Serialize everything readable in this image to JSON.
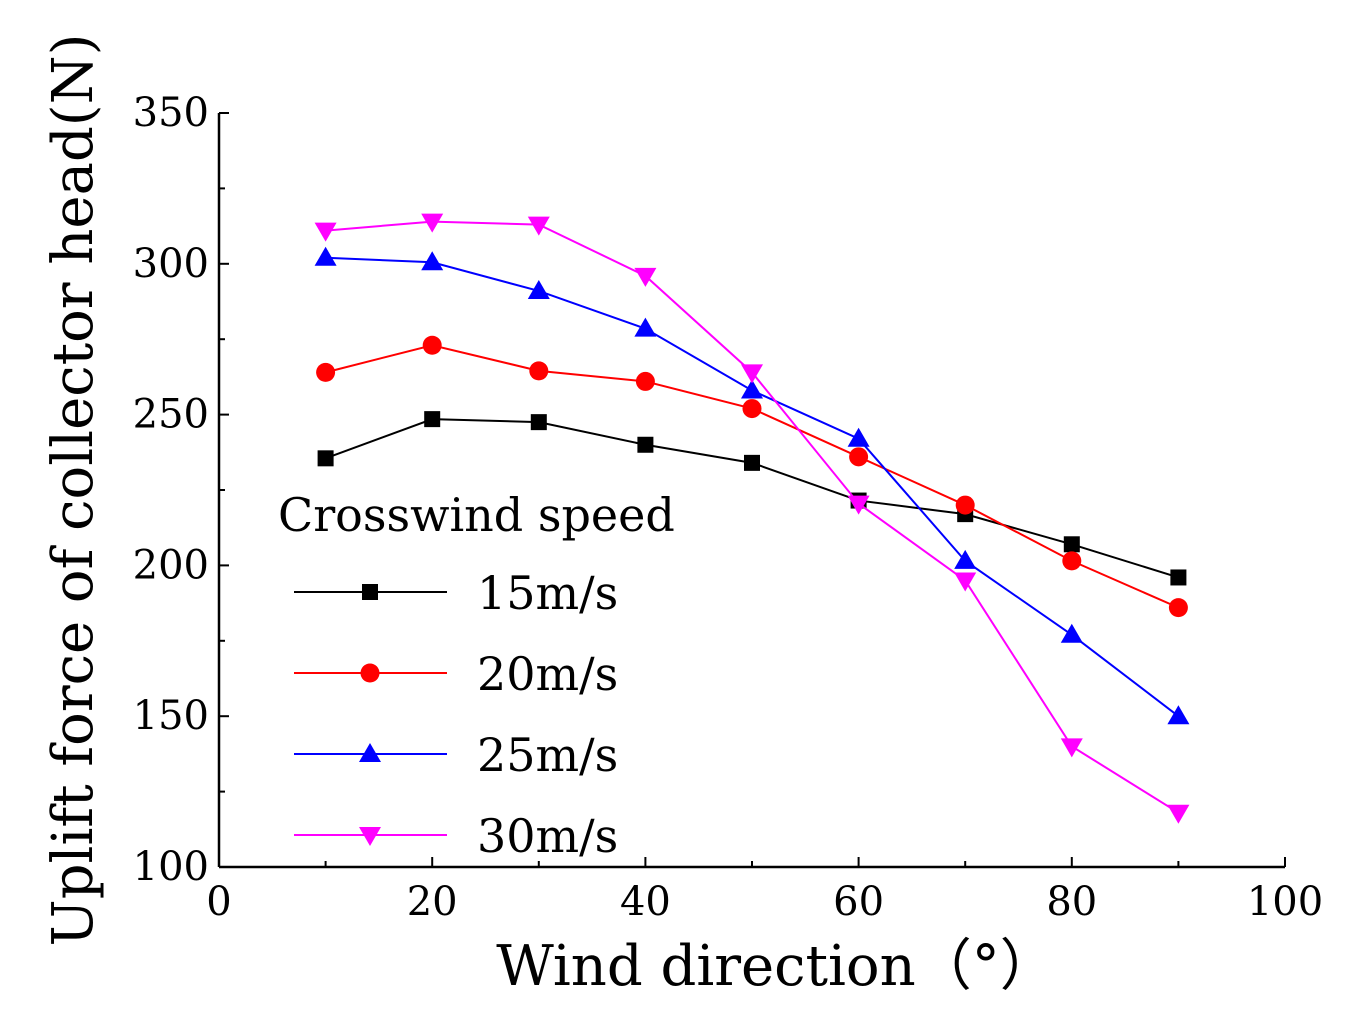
{
  "chart_data": {
    "type": "line",
    "title": "",
    "xlabel": "Wind direction（°）",
    "ylabel": "Uplift force of collector head(N)",
    "xlim": [
      0,
      100
    ],
    "ylim": [
      100,
      350
    ],
    "xticks": [
      0,
      20,
      40,
      60,
      80,
      100
    ],
    "yticks": [
      100,
      150,
      200,
      250,
      300,
      350
    ],
    "x": [
      10,
      20,
      30,
      40,
      50,
      60,
      70,
      80,
      90
    ],
    "legend": {
      "title": "Crosswind speed",
      "position": "lower-left"
    },
    "series": [
      {
        "name": "15m/s",
        "color": "#000000",
        "marker": "square",
        "values": [
          235.5,
          248.5,
          247.5,
          240,
          234,
          221.5,
          217,
          207,
          196
        ]
      },
      {
        "name": "20m/s",
        "color": "#ff0000",
        "marker": "circle",
        "values": [
          264,
          273,
          264.5,
          261,
          252,
          236,
          220,
          201.5,
          186
        ]
      },
      {
        "name": "25m/s",
        "color": "#0000ff",
        "marker": "triangle-up",
        "values": [
          302,
          300.5,
          291,
          278.5,
          258,
          242,
          201.5,
          177,
          150
        ]
      },
      {
        "name": "30m/s",
        "color": "#ff00ff",
        "marker": "triangle-down",
        "values": [
          311,
          314,
          313,
          296,
          264,
          220.5,
          195,
          140,
          118
        ]
      }
    ]
  }
}
